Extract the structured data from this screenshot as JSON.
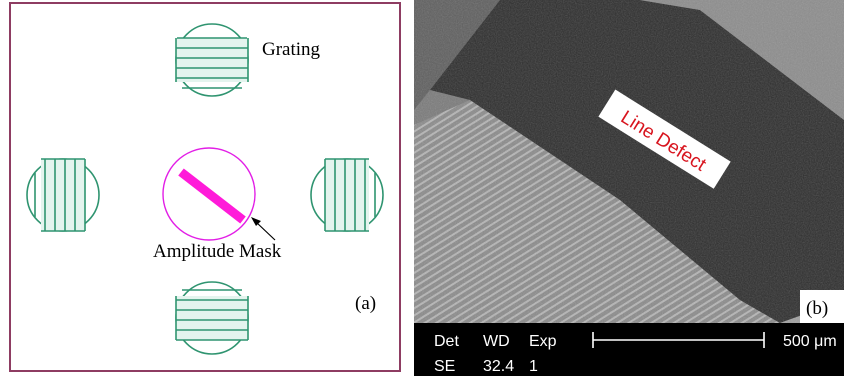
{
  "panel_a": {
    "grating_label": "Grating",
    "mask_label": "Amplitude Mask",
    "panel_label": "(a)",
    "colors": {
      "frame": "#8e3c62",
      "grating": "#2f9470",
      "grating_fill": "#d6efe6",
      "mask_circle": "#e21ee6",
      "mask_bar": "#ff1bd9"
    }
  },
  "panel_b": {
    "defect_label": "Line Defect",
    "panel_label": "(b)",
    "info_bar": {
      "det_label": "Det",
      "wd_label": "WD",
      "exp_label": "Exp",
      "det_value": "SE",
      "wd_value": "32.4",
      "exp_value": "1",
      "scale_label": "500 μm"
    },
    "colors": {
      "defect_text": "#d8141e",
      "info_bg": "#000000",
      "info_text": "#ffffff"
    }
  }
}
